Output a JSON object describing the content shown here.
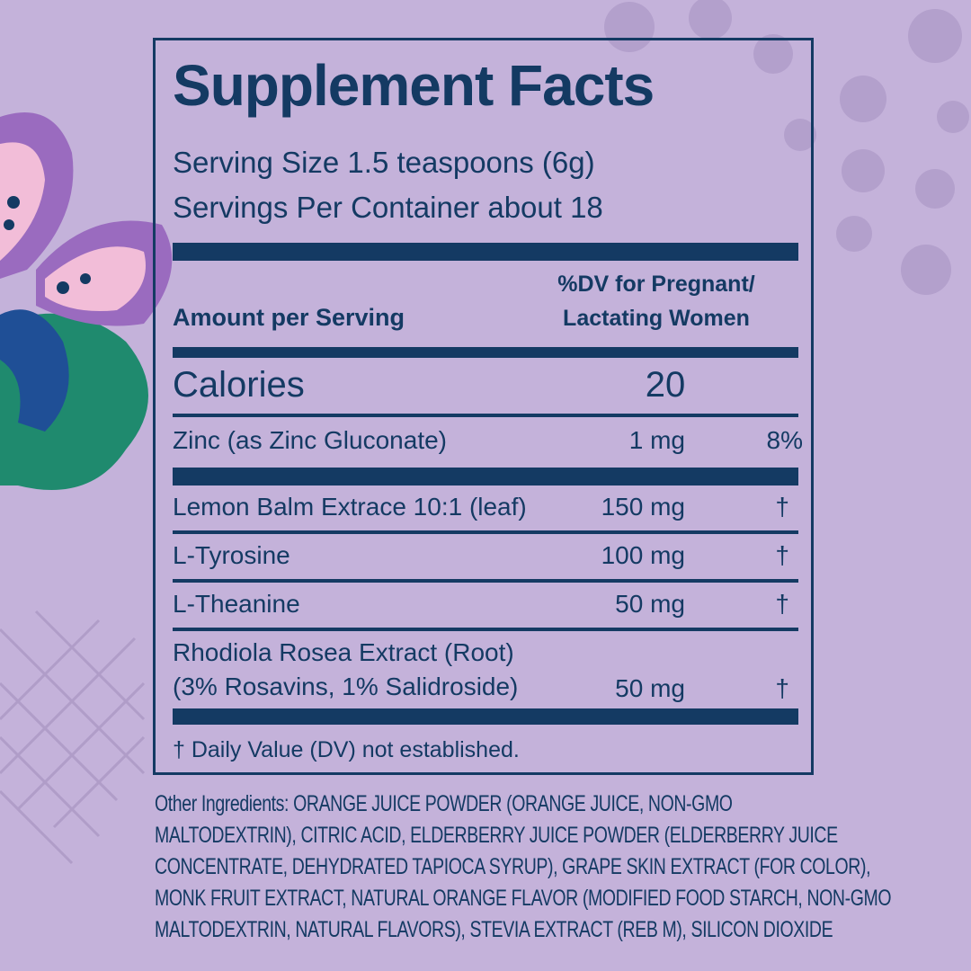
{
  "label": {
    "title": "Supplement Facts",
    "serving_size": "Serving Size 1.5 teaspoons (6g)",
    "servings_per_container": "Servings Per Container about 18",
    "header": {
      "amount": "Amount per Serving",
      "dv": [
        "%DV for Pregnant/",
        "Lactating Women"
      ]
    },
    "calories": {
      "name": "Calories",
      "amount": "20"
    },
    "rows": [
      {
        "name": [
          "Zinc (as Zinc Gluconate)"
        ],
        "amount": "1 mg",
        "dv": "8%"
      },
      {
        "name": [
          "Lemon Balm Extrace 10:1 (leaf)"
        ],
        "amount": "150 mg",
        "dv": "†"
      },
      {
        "name": [
          "L-Tyrosine"
        ],
        "amount": "100 mg",
        "dv": "†"
      },
      {
        "name": [
          "L-Theanine"
        ],
        "amount": "50 mg",
        "dv": "†"
      },
      {
        "name": [
          "Rhodiola Rosea Extract (Root)",
          "(3% Rosavins, 1% Salidroside)"
        ],
        "amount": "50 mg",
        "dv": "†"
      }
    ],
    "footnote": "† Daily Value (DV) not established.",
    "other_ingredients": [
      "Other Ingredients: ORANGE JUICE POWDER (ORANGE JUICE, NON-GMO",
      "MALTODEXTRIN), CITRIC ACID, ELDERBERRY JUICE POWDER (ELDERBERRY  JUICE",
      "CONCENTRATE, DEHYDRATED TAPIOCA SYRUP), GRAPE SKIN EXTRACT (FOR COLOR),",
      "MONK FRUIT EXTRACT, NATURAL ORANGE FLAVOR (MODIFIED FOOD STARCH, NON-GMO",
      "MALTODEXTRIN, NATURAL FLAVORS), STEVIA EXTRACT (REB M), SILICON DIOXIDE"
    ]
  }
}
